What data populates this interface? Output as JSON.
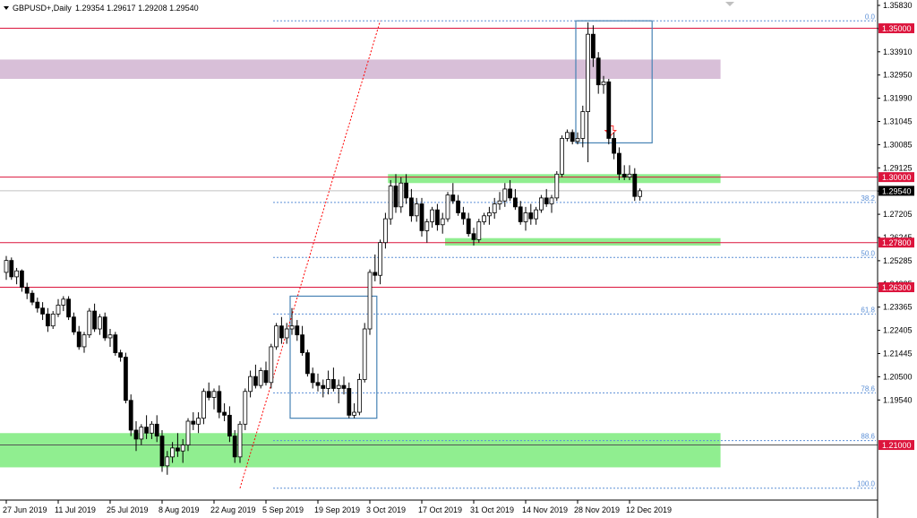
{
  "header": {
    "symbol": "GBPUSD+,Daily",
    "ohlc": "1.29354 1.29617 1.29208 1.29540",
    "menu_icon": "triangle-down-icon"
  },
  "colors": {
    "resistance_line": "#dc143c",
    "zone_purple": "#d8bfd8",
    "zone_green": "#90ee90",
    "box_blue": "#4682b4",
    "fib_blue": "#5b8fd6",
    "trend_red": "#ff0000",
    "arrow_red": "#ff3030",
    "current_tag": "#000000"
  },
  "chart_data": {
    "type": "candlestick",
    "ylim": [
      1.1915,
      1.3595
    ],
    "price_ticks": [
      "1.35830",
      "1.34870",
      "1.33910",
      "1.32950",
      "1.31990",
      "1.31045",
      "1.30085",
      "1.29125",
      "1.28165",
      "1.27205",
      "1.26245",
      "1.25285",
      "1.24325",
      "1.23365",
      "1.22405",
      "1.21445",
      "1.20500",
      "1.19540"
    ],
    "date_labels": [
      {
        "label": "27 Jun 2019",
        "bar": 0
      },
      {
        "label": "11 Jul 2019",
        "bar": 10
      },
      {
        "label": "25 Jul 2019",
        "bar": 20
      },
      {
        "label": "8 Aug 2019",
        "bar": 30
      },
      {
        "label": "22 Aug 2019",
        "bar": 40
      },
      {
        "label": "5 Sep 2019",
        "bar": 50
      },
      {
        "label": "19 Sep 2019",
        "bar": 60
      },
      {
        "label": "3 Oct 2019",
        "bar": 70
      },
      {
        "label": "17 Oct 2019",
        "bar": 80
      },
      {
        "label": "31 Oct 2019",
        "bar": 90
      },
      {
        "label": "14 Nov 2019",
        "bar": 100
      },
      {
        "label": "28 Nov 2019",
        "bar": 110
      },
      {
        "label": "12 Dec 2019",
        "bar": 120
      }
    ],
    "candles": [
      [
        1.268,
        1.2735,
        1.2655,
        1.272
      ],
      [
        1.272,
        1.273,
        1.2655,
        1.2665
      ],
      [
        1.2665,
        1.2695,
        1.264,
        1.2685
      ],
      [
        1.2685,
        1.269,
        1.2615,
        1.263
      ],
      [
        1.263,
        1.2645,
        1.259,
        1.261
      ],
      [
        1.261,
        1.262,
        1.257,
        1.258
      ],
      [
        1.258,
        1.2595,
        1.2545,
        1.256
      ],
      [
        1.256,
        1.258,
        1.252,
        1.254
      ],
      [
        1.254,
        1.256,
        1.248,
        1.25
      ],
      [
        1.25,
        1.255,
        1.249,
        1.254
      ],
      [
        1.254,
        1.259,
        1.253,
        1.257
      ],
      [
        1.257,
        1.26,
        1.255,
        1.259
      ],
      [
        1.259,
        1.26,
        1.252,
        1.253
      ],
      [
        1.253,
        1.2545,
        1.247,
        1.248
      ],
      [
        1.248,
        1.25,
        1.242,
        1.243
      ],
      [
        1.243,
        1.248,
        1.241,
        1.247
      ],
      [
        1.247,
        1.256,
        1.246,
        1.255
      ],
      [
        1.255,
        1.2575,
        1.248,
        1.249
      ],
      [
        1.249,
        1.254,
        1.247,
        1.253
      ],
      [
        1.253,
        1.2545,
        1.245,
        1.246
      ],
      [
        1.246,
        1.249,
        1.243,
        1.247
      ],
      [
        1.247,
        1.248,
        1.24,
        1.241
      ],
      [
        1.241,
        1.242,
        1.238,
        1.2395
      ],
      [
        1.2395,
        1.241,
        1.224,
        1.225
      ],
      [
        1.225,
        1.227,
        1.213,
        1.215
      ],
      [
        1.215,
        1.218,
        1.208,
        1.212
      ],
      [
        1.212,
        1.217,
        1.21,
        1.216
      ],
      [
        1.216,
        1.22,
        1.212,
        1.214
      ],
      [
        1.214,
        1.218,
        1.212,
        1.217
      ],
      [
        1.217,
        1.22,
        1.211,
        1.213
      ],
      [
        1.213,
        1.215,
        1.201,
        1.203
      ],
      [
        1.203,
        1.208,
        1.2,
        1.206
      ],
      [
        1.206,
        1.211,
        1.204,
        1.209
      ],
      [
        1.209,
        1.214,
        1.206,
        1.208
      ],
      [
        1.208,
        1.212,
        1.204,
        1.21
      ],
      [
        1.21,
        1.219,
        1.208,
        1.218
      ],
      [
        1.218,
        1.221,
        1.215,
        1.217
      ],
      [
        1.217,
        1.221,
        1.214,
        1.219
      ],
      [
        1.219,
        1.229,
        1.217,
        1.228
      ],
      [
        1.228,
        1.231,
        1.225,
        1.226
      ],
      [
        1.226,
        1.229,
        1.222,
        1.228
      ],
      [
        1.228,
        1.23,
        1.219,
        1.221
      ],
      [
        1.221,
        1.224,
        1.218,
        1.22
      ],
      [
        1.22,
        1.223,
        1.211,
        1.213
      ],
      [
        1.213,
        1.215,
        1.204,
        1.206
      ],
      [
        1.206,
        1.218,
        1.204,
        1.217
      ],
      [
        1.217,
        1.229,
        1.215,
        1.228
      ],
      [
        1.228,
        1.235,
        1.226,
        1.233
      ],
      [
        1.233,
        1.237,
        1.229,
        1.23
      ],
      [
        1.23,
        1.236,
        1.229,
        1.235
      ],
      [
        1.235,
        1.238,
        1.23,
        1.231
      ],
      [
        1.231,
        1.244,
        1.229,
        1.243
      ],
      [
        1.243,
        1.251,
        1.242,
        1.25
      ],
      [
        1.25,
        1.253,
        1.244,
        1.246
      ],
      [
        1.246,
        1.251,
        1.244,
        1.249
      ],
      [
        1.249,
        1.256,
        1.247,
        1.25
      ],
      [
        1.25,
        1.252,
        1.245,
        1.247
      ],
      [
        1.247,
        1.25,
        1.24,
        1.241
      ],
      [
        1.241,
        1.242,
        1.233,
        1.234
      ],
      [
        1.234,
        1.236,
        1.229,
        1.231
      ],
      [
        1.231,
        1.234,
        1.228,
        1.23
      ],
      [
        1.23,
        1.232,
        1.226,
        1.229
      ],
      [
        1.229,
        1.235,
        1.227,
        1.232
      ],
      [
        1.232,
        1.236,
        1.228,
        1.229
      ],
      [
        1.229,
        1.232,
        1.224,
        1.23
      ],
      [
        1.23,
        1.233,
        1.227,
        1.229
      ],
      [
        1.229,
        1.231,
        1.219,
        1.22
      ],
      [
        1.22,
        1.224,
        1.219,
        1.221
      ],
      [
        1.221,
        1.234,
        1.22,
        1.232
      ],
      [
        1.232,
        1.251,
        1.231,
        1.249
      ],
      [
        1.249,
        1.269,
        1.247,
        1.268
      ],
      [
        1.268,
        1.274,
        1.265,
        1.267
      ],
      [
        1.267,
        1.279,
        1.264,
        1.278
      ],
      [
        1.278,
        1.288,
        1.276,
        1.286
      ],
      [
        1.286,
        1.299,
        1.284,
        1.297
      ],
      [
        1.297,
        1.301,
        1.288,
        1.29
      ],
      [
        1.29,
        1.3,
        1.288,
        1.298
      ],
      [
        1.298,
        1.301,
        1.291,
        1.293
      ],
      [
        1.293,
        1.296,
        1.285,
        1.287
      ],
      [
        1.287,
        1.293,
        1.285,
        1.291
      ],
      [
        1.291,
        1.293,
        1.28,
        1.282
      ],
      [
        1.282,
        1.286,
        1.278,
        1.285
      ],
      [
        1.285,
        1.29,
        1.283,
        1.289
      ],
      [
        1.289,
        1.291,
        1.282,
        1.284
      ],
      [
        1.284,
        1.288,
        1.281,
        1.286
      ],
      [
        1.286,
        1.295,
        1.285,
        1.294
      ],
      [
        1.294,
        1.298,
        1.291,
        1.292
      ],
      [
        1.292,
        1.294,
        1.287,
        1.288
      ],
      [
        1.288,
        1.29,
        1.284,
        1.286
      ],
      [
        1.286,
        1.288,
        1.28,
        1.281
      ],
      [
        1.281,
        1.283,
        1.277,
        1.279
      ],
      [
        1.279,
        1.286,
        1.278,
        1.285
      ],
      [
        1.285,
        1.288,
        1.284,
        1.287
      ],
      [
        1.287,
        1.29,
        1.284,
        1.288
      ],
      [
        1.288,
        1.293,
        1.286,
        1.291
      ],
      [
        1.291,
        1.295,
        1.289,
        1.292
      ],
      [
        1.292,
        1.298,
        1.29,
        1.296
      ],
      [
        1.296,
        1.299,
        1.292,
        1.293
      ],
      [
        1.293,
        1.296,
        1.289,
        1.29
      ],
      [
        1.29,
        1.292,
        1.284,
        1.285
      ],
      [
        1.285,
        1.29,
        1.282,
        1.288
      ],
      [
        1.288,
        1.291,
        1.284,
        1.286
      ],
      [
        1.286,
        1.29,
        1.284,
        1.289
      ],
      [
        1.289,
        1.294,
        1.288,
        1.293
      ],
      [
        1.293,
        1.296,
        1.29,
        1.291
      ],
      [
        1.291,
        1.294,
        1.288,
        1.293
      ],
      [
        1.293,
        1.302,
        1.292,
        1.301
      ],
      [
        1.301,
        1.314,
        1.3,
        1.313
      ],
      [
        1.313,
        1.316,
        1.312,
        1.315
      ],
      [
        1.315,
        1.316,
        1.311,
        1.312
      ],
      [
        1.312,
        1.315,
        1.311,
        1.313
      ],
      [
        1.313,
        1.324,
        1.31,
        1.322
      ],
      [
        1.322,
        1.352,
        1.305,
        1.348
      ],
      [
        1.348,
        1.351,
        1.337,
        1.34
      ],
      [
        1.34,
        1.342,
        1.328,
        1.331
      ],
      [
        1.331,
        1.334,
        1.328,
        1.332
      ],
      [
        1.332,
        1.333,
        1.311,
        1.313
      ],
      [
        1.313,
        1.315,
        1.306,
        1.308
      ],
      [
        1.308,
        1.31,
        1.299,
        1.301
      ],
      [
        1.301,
        1.304,
        1.299,
        1.3
      ],
      [
        1.3,
        1.304,
        1.299,
        1.301
      ],
      [
        1.301,
        1.303,
        1.292,
        1.2935
      ],
      [
        1.2935,
        1.2962,
        1.2921,
        1.2954
      ]
    ],
    "fib_levels": [
      {
        "label": "0.0",
        "price": 1.3525
      },
      {
        "label": "38.2",
        "price": 1.2915
      },
      {
        "label": "50.0",
        "price": 1.273
      },
      {
        "label": "61.8",
        "price": 1.254
      },
      {
        "label": "78.6",
        "price": 1.2275
      },
      {
        "label": "88.6",
        "price": 1.2115
      },
      {
        "label": "100.0",
        "price": 1.1955
      }
    ],
    "horizontal_levels": [
      {
        "label": "1.35000",
        "price": 1.35
      },
      {
        "label": "1.30000",
        "price": 1.3
      },
      {
        "label": "1.27800",
        "price": 1.278
      },
      {
        "label": "1.26300",
        "price": 1.263
      },
      {
        "label": "1.21000",
        "price": 1.21
      }
    ],
    "current_price": {
      "label": "1.29540",
      "price": 1.2954
    },
    "zones": [
      {
        "name": "purple-zone",
        "from_price": 1.333,
        "to_price": 1.3395,
        "from_bar": 0,
        "to_bar": 137,
        "color": "#d8bfd8"
      },
      {
        "name": "green-zone-top",
        "from_price": 1.298,
        "to_price": 1.301,
        "from_bar": 74,
        "to_bar": 137,
        "color": "#90ee90"
      },
      {
        "name": "green-zone-mid",
        "from_price": 1.277,
        "to_price": 1.2795,
        "from_bar": 85,
        "to_bar": 137,
        "color": "#90ee90"
      },
      {
        "name": "green-zone-bottom",
        "from_price": 1.2025,
        "to_price": 1.214,
        "from_bar": 0,
        "to_bar": 137,
        "color": "#90ee90"
      }
    ],
    "boxes": [
      {
        "name": "box-sep",
        "from_bar": 55,
        "to_bar": 71,
        "top": 1.26,
        "bottom": 1.219
      },
      {
        "name": "box-dec",
        "from_bar": 110,
        "to_bar": 124,
        "top": 1.3525,
        "bottom": 1.3115
      }
    ],
    "trend_line": {
      "from_bar": 45,
      "from_price": 1.1955,
      "to_bar": 72,
      "to_price": 1.3525
    },
    "arrow_marker": {
      "bar": 116,
      "price": 1.313
    }
  }
}
